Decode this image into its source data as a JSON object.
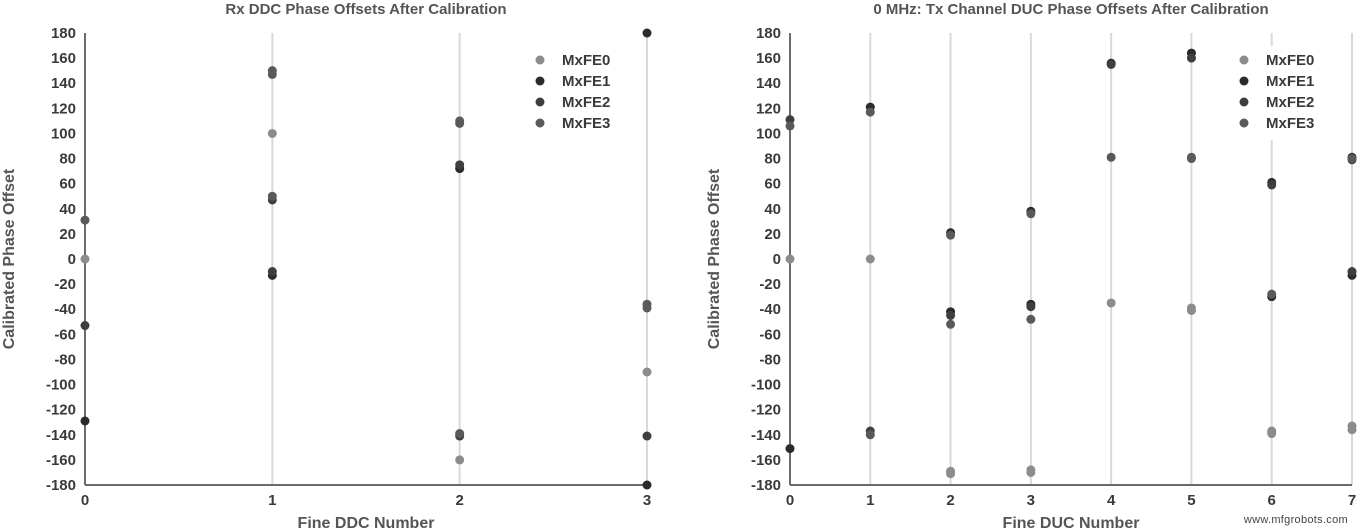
{
  "watermark": "www.mfgrobots.com",
  "chart_data": [
    {
      "type": "scatter",
      "title": "Rx DDC Phase Offsets After Calibration",
      "xlabel": "Fine DDC Number",
      "ylabel": "Calibrated Phase Offset",
      "xlim": [
        0,
        3
      ],
      "ylim": [
        -180,
        180
      ],
      "xticks": [
        "0",
        "1",
        "2",
        "3"
      ],
      "yticks": [
        "180",
        "160",
        "140",
        "120",
        "100",
        "80",
        "60",
        "40",
        "20",
        "0",
        "-20",
        "-40",
        "-60",
        "-80",
        "-100",
        "-120",
        "-140",
        "-160",
        "-180"
      ],
      "grid": "vertical",
      "legend": "top-right",
      "series": [
        {
          "name": "MxFE0",
          "color": "#8c8c8c",
          "points": [
            [
              0,
              0
            ],
            [
              1,
              100
            ],
            [
              2,
              -160
            ],
            [
              3,
              -90
            ]
          ]
        },
        {
          "name": "MxFE1",
          "color": "#2b2b2b",
          "points": [
            [
              0,
              -129
            ],
            [
              1,
              -13
            ],
            [
              2,
              72
            ],
            [
              3,
              180
            ],
            [
              3,
              -180
            ]
          ]
        },
        {
          "name": "MxFE2",
          "color": "#3f3f3f",
          "points": [
            [
              0,
              -53
            ],
            [
              1,
              47
            ],
            [
              1,
              -10
            ],
            [
              2,
              75
            ],
            [
              2,
              -141
            ],
            [
              3,
              -141
            ]
          ]
        },
        {
          "name": "MxFE3",
          "color": "#5a5a5a",
          "points": [
            [
              0,
              31
            ],
            [
              1,
              150
            ],
            [
              1,
              147
            ],
            [
              1,
              50
            ],
            [
              2,
              110
            ],
            [
              2,
              108
            ],
            [
              2,
              -139
            ],
            [
              3,
              -36
            ],
            [
              3,
              -39
            ]
          ]
        }
      ]
    },
    {
      "type": "scatter",
      "title": "0 MHz: Tx Channel DUC Phase Offsets After Calibration",
      "xlabel": "Fine DUC Number",
      "ylabel": "Calibrated Phase Offset",
      "xlim": [
        0,
        7
      ],
      "ylim": [
        -180,
        180
      ],
      "xticks": [
        "0",
        "1",
        "2",
        "3",
        "4",
        "5",
        "6",
        "7"
      ],
      "yticks": [
        "180",
        "160",
        "140",
        "120",
        "100",
        "80",
        "60",
        "40",
        "20",
        "0",
        "-20",
        "-40",
        "-60",
        "-80",
        "-100",
        "-120",
        "-140",
        "-160",
        "-180"
      ],
      "grid": "vertical",
      "legend": "top-right",
      "series": [
        {
          "name": "MxFE0",
          "color": "#8c8c8c",
          "points": [
            [
              0,
              0
            ],
            [
              1,
              0
            ],
            [
              2,
              -169
            ],
            [
              2,
              -171
            ],
            [
              3,
              -168
            ],
            [
              3,
              -170
            ],
            [
              4,
              -35
            ],
            [
              5,
              -39
            ],
            [
              5,
              -41
            ],
            [
              6,
              -137
            ],
            [
              6,
              -139
            ],
            [
              7,
              -133
            ],
            [
              7,
              -136
            ]
          ]
        },
        {
          "name": "MxFE1",
          "color": "#2b2b2b",
          "points": [
            [
              0,
              -151
            ],
            [
              1,
              121
            ],
            [
              2,
              21
            ],
            [
              2,
              -42
            ],
            [
              3,
              38
            ],
            [
              3,
              -36
            ],
            [
              4,
              156
            ],
            [
              5,
              164
            ],
            [
              6,
              61
            ],
            [
              6,
              -30
            ],
            [
              7,
              81
            ],
            [
              7,
              -13
            ]
          ]
        },
        {
          "name": "MxFE2",
          "color": "#3f3f3f",
          "points": [
            [
              0,
              111
            ],
            [
              1,
              -137
            ],
            [
              2,
              -45
            ],
            [
              3,
              -38
            ],
            [
              4,
              155
            ],
            [
              5,
              160
            ],
            [
              6,
              59
            ],
            [
              7,
              79
            ],
            [
              7,
              -10
            ]
          ]
        },
        {
          "name": "MxFE3",
          "color": "#5a5a5a",
          "points": [
            [
              0,
              106
            ],
            [
              1,
              117
            ],
            [
              1,
              -140
            ],
            [
              2,
              19
            ],
            [
              2,
              -52
            ],
            [
              3,
              36
            ],
            [
              3,
              -48
            ],
            [
              4,
              81
            ],
            [
              5,
              81
            ],
            [
              5,
              80
            ],
            [
              6,
              -28
            ],
            [
              7,
              80
            ]
          ]
        }
      ]
    }
  ]
}
